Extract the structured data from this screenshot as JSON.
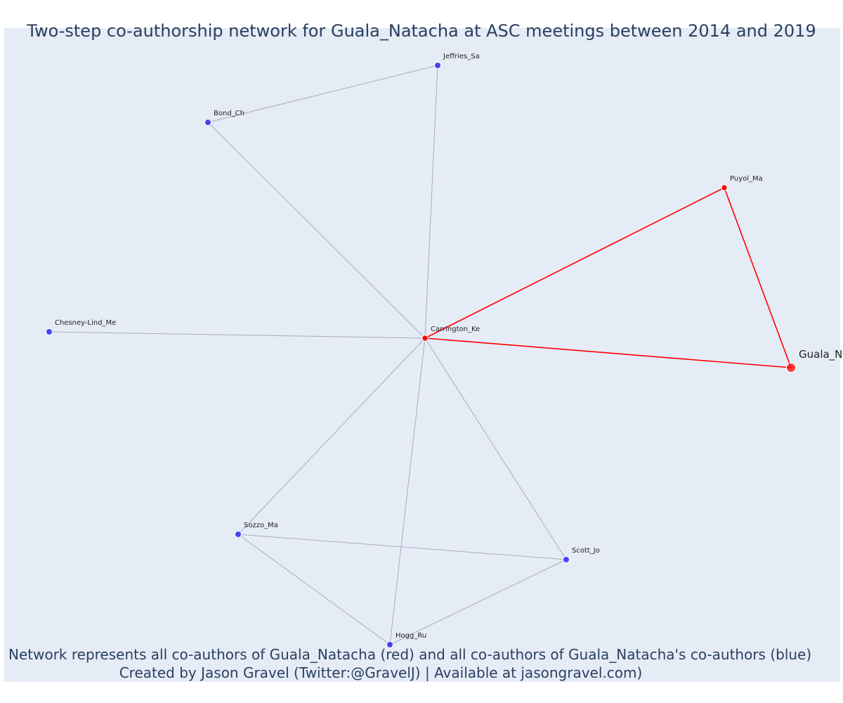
{
  "title": "Two-step co-authorship network for Guala_Natacha at ASC meetings between 2014 and 2019",
  "caption": {
    "line1": "Network represents all co-authors of Guala_Natacha (red) and all co-authors of Guala_Natacha's co-authors (blue)",
    "line2": "Created by Jason Gravel (Twitter:@GravelJ) | Available at jasongravel.com)"
  },
  "colors": {
    "primary": "#ff0000",
    "secondary": "#3c3cf0",
    "secondary_edge": "#a9abbf",
    "background": "#e5ecf6"
  },
  "nodes": [
    {
      "id": "jeffries",
      "label": "Jeffries_Sa",
      "group": "secondary"
    },
    {
      "id": "bond",
      "label": "Bond_Ch",
      "group": "secondary"
    },
    {
      "id": "puyol",
      "label": "Puyol_Ma",
      "group": "primary"
    },
    {
      "id": "chesney",
      "label": "Chesney-Lind_Me",
      "group": "secondary"
    },
    {
      "id": "carrington",
      "label": "Carrington_Ke",
      "group": "primary"
    },
    {
      "id": "guala",
      "label": "Guala_N",
      "group": "focal"
    },
    {
      "id": "sozzo",
      "label": "Sozzo_Ma",
      "group": "secondary"
    },
    {
      "id": "scott",
      "label": "Scott_Jo",
      "group": "secondary"
    },
    {
      "id": "hogg",
      "label": "Hogg_Ru",
      "group": "secondary"
    }
  ],
  "edges": [
    {
      "source": "bond",
      "target": "jeffries",
      "group": "secondary"
    },
    {
      "source": "bond",
      "target": "carrington",
      "group": "secondary"
    },
    {
      "source": "jeffries",
      "target": "carrington",
      "group": "secondary"
    },
    {
      "source": "chesney",
      "target": "carrington",
      "group": "secondary"
    },
    {
      "source": "sozzo",
      "target": "carrington",
      "group": "secondary"
    },
    {
      "source": "hogg",
      "target": "carrington",
      "group": "secondary"
    },
    {
      "source": "scott",
      "target": "carrington",
      "group": "secondary"
    },
    {
      "source": "sozzo",
      "target": "scott",
      "group": "secondary"
    },
    {
      "source": "sozzo",
      "target": "hogg",
      "group": "secondary"
    },
    {
      "source": "hogg",
      "target": "scott",
      "group": "secondary"
    },
    {
      "source": "carrington",
      "target": "puyol",
      "group": "primary"
    },
    {
      "source": "carrington",
      "target": "guala",
      "group": "primary"
    },
    {
      "source": "puyol",
      "target": "guala",
      "group": "primary"
    }
  ]
}
